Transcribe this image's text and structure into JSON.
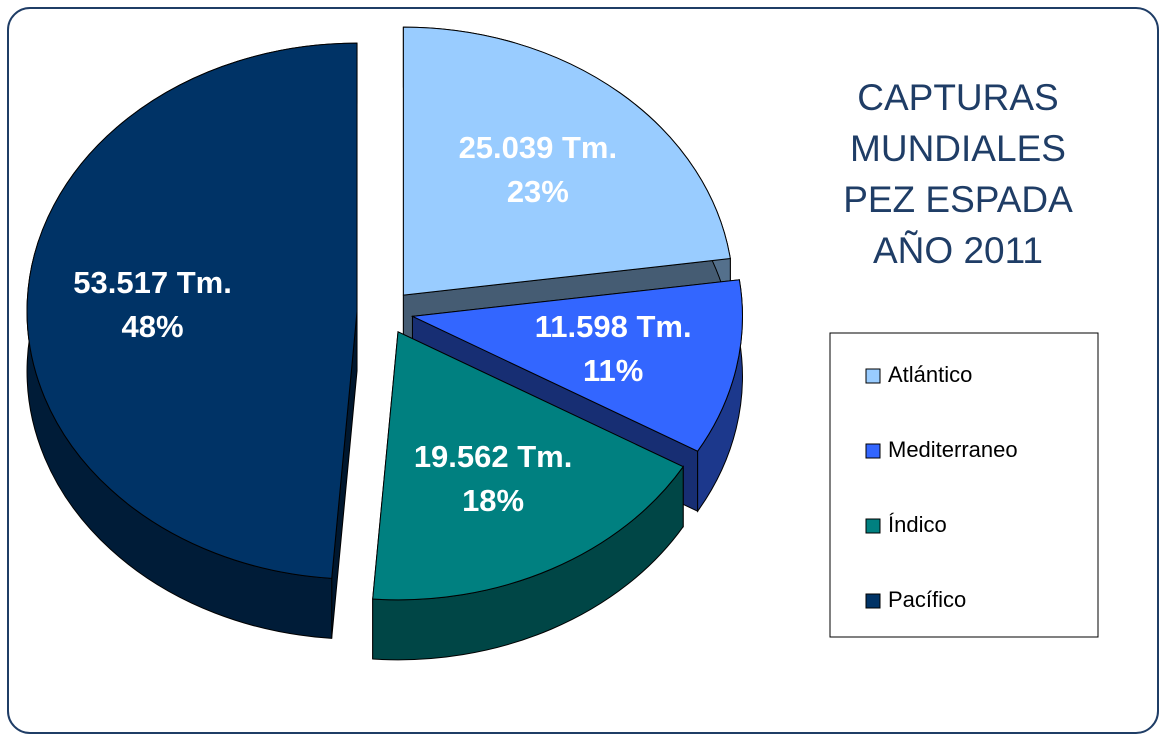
{
  "chart_data": {
    "type": "pie3d",
    "title": [
      "CAPTURAS",
      "MUNDIALES",
      "PEZ ESPADA",
      "AÑO 2011"
    ],
    "categories": [
      "Atlántico",
      "Mediterraneo",
      "Índico",
      "Pacífico"
    ],
    "values": [
      25039,
      11598,
      19562,
      53517
    ],
    "value_labels": [
      "25.039 Tm.",
      "11.598 Tm.",
      "19.562 Tm.",
      "53.517 Tm."
    ],
    "percent_labels": [
      "23%",
      "11%",
      "18%",
      "48%"
    ],
    "colors": [
      "#99ccff",
      "#3366ff",
      "#008080",
      "#003366"
    ],
    "legend": "right"
  }
}
